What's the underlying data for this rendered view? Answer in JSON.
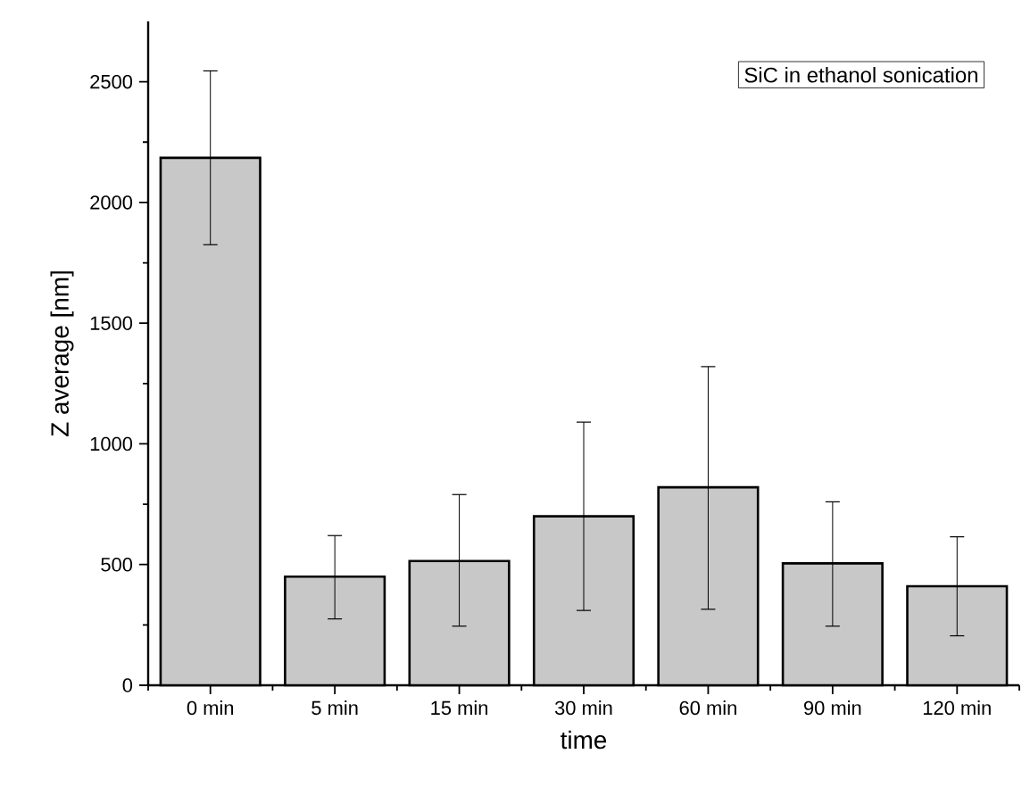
{
  "chart_data": {
    "type": "bar",
    "title": "SiC in ethanol sonication",
    "xlabel": "time",
    "ylabel": "Z average [nm]",
    "categories": [
      "0 min",
      "5 min",
      "15 min",
      "30 min",
      "60 min",
      "90 min",
      "120 min"
    ],
    "values": [
      2185,
      450,
      515,
      700,
      820,
      505,
      410
    ],
    "errors": [
      [
        1825,
        2545
      ],
      [
        275,
        620
      ],
      [
        245,
        790
      ],
      [
        310,
        1090
      ],
      [
        315,
        1320
      ],
      [
        245,
        760
      ],
      [
        205,
        615
      ]
    ],
    "color": "#c8c8c8",
    "ylim": [
      0,
      2750
    ],
    "yticks": [
      0,
      500,
      1000,
      1500,
      2000,
      2500
    ],
    "grid": false
  }
}
